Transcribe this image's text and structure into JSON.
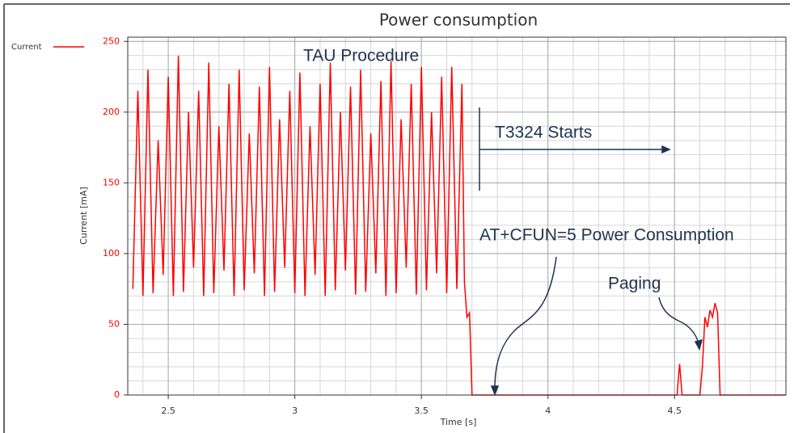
{
  "chart_data": {
    "type": "line",
    "title": "Power consumption",
    "xlabel": "Time [s]",
    "ylabel": "Current [mA]",
    "xlim": [
      2.34,
      4.94
    ],
    "ylim": [
      0,
      253
    ],
    "xticks": [
      2.5,
      3,
      3.5,
      4,
      4.5
    ],
    "yticks": [
      0,
      50,
      100,
      150,
      200,
      250
    ],
    "grid": true,
    "legend": "top-left",
    "series": [
      {
        "name": "Current",
        "color": "#ff0000",
        "x": [
          2.36,
          2.38,
          2.4,
          2.42,
          2.44,
          2.46,
          2.48,
          2.5,
          2.52,
          2.54,
          2.56,
          2.58,
          2.6,
          2.62,
          2.64,
          2.66,
          2.68,
          2.7,
          2.72,
          2.74,
          2.76,
          2.78,
          2.8,
          2.82,
          2.84,
          2.86,
          2.88,
          2.9,
          2.92,
          2.94,
          2.96,
          2.98,
          3.0,
          3.02,
          3.04,
          3.06,
          3.08,
          3.1,
          3.12,
          3.14,
          3.16,
          3.18,
          3.2,
          3.22,
          3.24,
          3.26,
          3.28,
          3.3,
          3.32,
          3.34,
          3.36,
          3.38,
          3.4,
          3.42,
          3.44,
          3.46,
          3.48,
          3.5,
          3.52,
          3.54,
          3.56,
          3.58,
          3.6,
          3.62,
          3.64,
          3.66,
          3.67,
          3.68,
          3.69,
          3.7,
          4.51,
          4.52,
          4.53,
          4.6,
          4.61,
          4.62,
          4.63,
          4.64,
          4.65,
          4.66,
          4.67,
          4.68,
          4.94
        ],
        "values": [
          75,
          215,
          70,
          230,
          72,
          180,
          85,
          225,
          70,
          240,
          73,
          200,
          90,
          215,
          70,
          235,
          72,
          190,
          88,
          220,
          70,
          230,
          74,
          185,
          86,
          218,
          70,
          232,
          73,
          195,
          90,
          215,
          72,
          228,
          70,
          190,
          85,
          220,
          70,
          235,
          74,
          200,
          88,
          218,
          71,
          230,
          73,
          185,
          86,
          222,
          70,
          236,
          72,
          195,
          90,
          220,
          71,
          232,
          74,
          200,
          86,
          225,
          72,
          232,
          75,
          220,
          80,
          55,
          58,
          0,
          0,
          22,
          0,
          0,
          20,
          55,
          48,
          60,
          55,
          65,
          58,
          0,
          0
        ]
      }
    ],
    "annotations": [
      "TAU Procedure",
      "T3324 Starts",
      "AT+CFUN=5 Power Consumption",
      "Paging"
    ]
  }
}
